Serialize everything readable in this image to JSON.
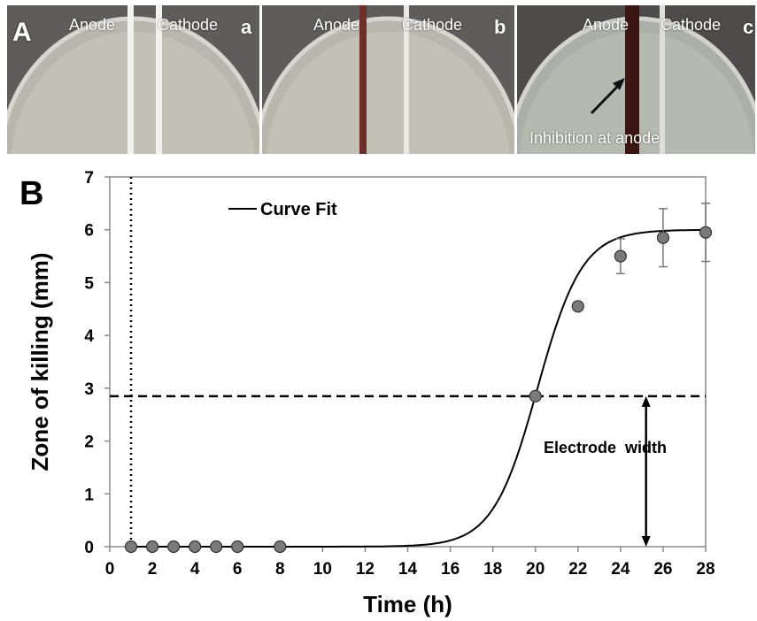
{
  "panel_a": {
    "letter": "A",
    "subpanels": [
      {
        "anode_label": "Anode",
        "cathode_label": "Cathode",
        "letter": "a",
        "note": ""
      },
      {
        "anode_label": "Anode",
        "cathode_label": "Cathode",
        "letter": "b",
        "note": ""
      },
      {
        "anode_label": "Anode",
        "cathode_label": "Cathode",
        "letter": "c",
        "note": "Inhibition at anode"
      }
    ]
  },
  "panel_b": {
    "letter": "B",
    "electrode_width_label": "Electrode  width"
  },
  "chart_data": {
    "type": "scatter",
    "xlabel": "Time (h)",
    "ylabel": "Zone of killing (mm)",
    "xlim": [
      0,
      28
    ],
    "ylim": [
      0,
      7
    ],
    "xticks": [
      0,
      2,
      4,
      6,
      8,
      10,
      12,
      14,
      16,
      18,
      20,
      22,
      24,
      26,
      28
    ],
    "yticks": [
      0,
      1,
      2,
      3,
      4,
      5,
      6,
      7
    ],
    "grid": false,
    "legend": {
      "position": "top-left",
      "entries": [
        "Curve Fit"
      ]
    },
    "series": [
      {
        "name": "data",
        "x": [
          1,
          2,
          3,
          4,
          5,
          6,
          8,
          20,
          22,
          24,
          26,
          28
        ],
        "y": [
          0,
          0,
          0,
          0,
          0,
          0,
          0,
          2.85,
          4.55,
          5.5,
          5.85,
          5.95
        ],
        "error": [
          0,
          0,
          0,
          0,
          0,
          0,
          0,
          0,
          0,
          0.33,
          0.55,
          0.55
        ]
      },
      {
        "name": "Curve Fit",
        "model": "sigmoid",
        "params": {
          "top": 6.0,
          "midpoint": 20.1,
          "slope": 1.05
        }
      }
    ],
    "reference_lines": {
      "vertical_dotted_x": 1,
      "horizontal_dashed_y": 2.85
    },
    "annotations": [
      {
        "text": "Electrode  width",
        "arrow_x": 25.2,
        "from_y": 0,
        "to_y": 2.85
      }
    ]
  }
}
